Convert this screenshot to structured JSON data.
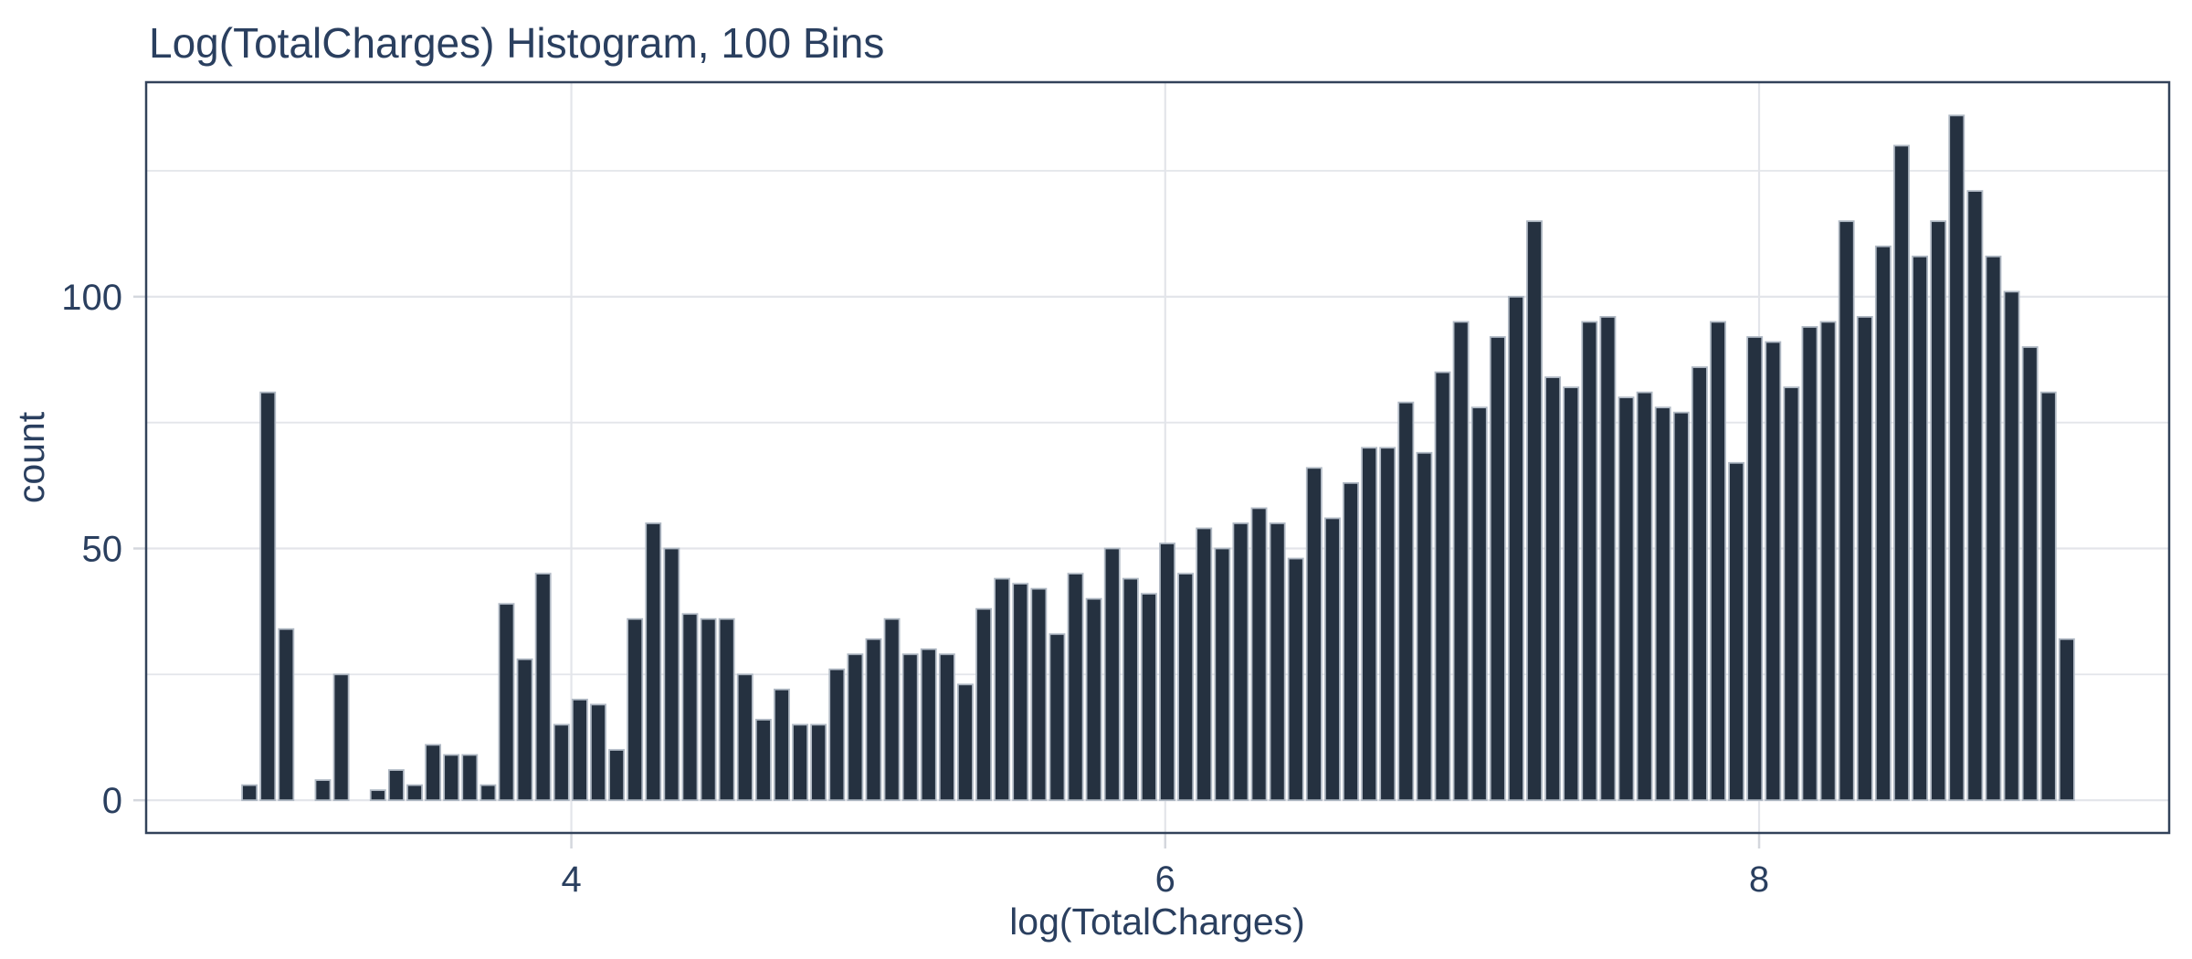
{
  "chart_data": {
    "type": "bar",
    "chart_kind": "histogram",
    "title": "Log(TotalCharges) Histogram, 100 Bins",
    "xlabel": "log(TotalCharges)",
    "ylabel": "count",
    "bins": 100,
    "bin_start": 2.885,
    "bin_width": 0.06182,
    "counts": [
      3,
      81,
      34,
      0,
      4,
      25,
      0,
      2,
      6,
      3,
      11,
      9,
      9,
      3,
      39,
      28,
      45,
      15,
      20,
      19,
      10,
      36,
      55,
      50,
      37,
      36,
      36,
      25,
      16,
      22,
      15,
      15,
      26,
      29,
      32,
      36,
      29,
      30,
      29,
      23,
      38,
      44,
      43,
      42,
      33,
      45,
      40,
      50,
      44,
      41,
      51,
      45,
      54,
      50,
      55,
      58,
      55,
      48,
      66,
      56,
      63,
      70,
      70,
      79,
      69,
      85,
      95,
      78,
      92,
      100,
      115,
      84,
      82,
      95,
      96,
      80,
      81,
      78,
      77,
      86,
      95,
      67,
      92,
      91,
      82,
      94,
      95,
      115,
      96,
      110,
      130,
      108,
      115,
      136,
      121,
      108,
      101,
      90,
      81,
      32
    ],
    "x_range": [
      2.568,
      9.381
    ],
    "y_range": [
      -6.5,
      142.6
    ],
    "x_ticks": [
      {
        "value": 4,
        "label": "4"
      },
      {
        "value": 6,
        "label": "6"
      },
      {
        "value": 8,
        "label": "8"
      }
    ],
    "y_ticks": [
      {
        "value": 0,
        "label": "0"
      },
      {
        "value": 50,
        "label": "50"
      },
      {
        "value": 100,
        "label": "100"
      }
    ],
    "x_gridlines": [
      4,
      6,
      8
    ],
    "y_gridlines": [
      0,
      25,
      50,
      75,
      100,
      125
    ],
    "grid": true,
    "legend_position": "none",
    "colors": {
      "bar_fill": "#253140",
      "bar_stroke": "#b0b9c4",
      "gridline": "#e3e5ea",
      "axis_border": "#32425a",
      "text": "#2a3f5f",
      "tick_mark": "#d4d7dd",
      "plot_bg": "#ffffff",
      "paper_bg": "#ffffff"
    }
  }
}
